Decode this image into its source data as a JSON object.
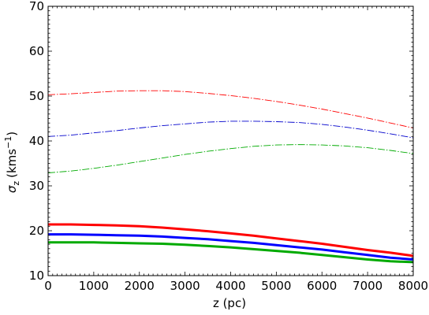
{
  "chart_data": {
    "type": "line",
    "xlabel": "z (pc)",
    "ylabel_symbol": "σ",
    "ylabel_sub": "z",
    "ylabel_units": "(kms",
    "ylabel_exp": "−1",
    "ylabel_close": ")",
    "xlim": [
      0,
      8000
    ],
    "ylim": [
      10,
      70
    ],
    "xticks": [
      0,
      1000,
      2000,
      3000,
      4000,
      5000,
      6000,
      7000,
      8000
    ],
    "yticks": [
      10,
      20,
      30,
      40,
      50,
      60,
      70
    ],
    "x": [
      0,
      500,
      1000,
      1500,
      2000,
      2500,
      3000,
      3500,
      4000,
      4500,
      5000,
      5500,
      6000,
      6500,
      7000,
      7500,
      8000
    ],
    "grid": false,
    "legend": "none",
    "series": [
      {
        "color": "#ff0000",
        "style": "dashdot",
        "values": [
          50.3,
          50.5,
          50.8,
          51.1,
          51.2,
          51.2,
          51.0,
          50.6,
          50.1,
          49.5,
          48.8,
          48.0,
          47.1,
          46.1,
          45.1,
          44.0,
          42.9
        ]
      },
      {
        "color": "#0000cc",
        "style": "dashdot",
        "values": [
          41.0,
          41.3,
          41.8,
          42.3,
          42.9,
          43.4,
          43.8,
          44.2,
          44.4,
          44.4,
          44.3,
          44.1,
          43.7,
          43.1,
          42.4,
          41.6,
          40.7
        ]
      },
      {
        "color": "#00aa00",
        "style": "dashdot",
        "values": [
          32.9,
          33.3,
          33.9,
          34.6,
          35.4,
          36.2,
          37.0,
          37.7,
          38.3,
          38.8,
          39.1,
          39.2,
          39.1,
          38.9,
          38.5,
          37.9,
          37.2
        ]
      },
      {
        "color": "#ff0000",
        "style": "solid",
        "values": [
          21.4,
          21.4,
          21.3,
          21.2,
          21.0,
          20.7,
          20.3,
          19.9,
          19.4,
          18.9,
          18.3,
          17.7,
          17.1,
          16.4,
          15.7,
          15.1,
          14.4
        ]
      },
      {
        "color": "#0000ff",
        "style": "solid",
        "values": [
          19.2,
          19.2,
          19.1,
          19.0,
          18.9,
          18.7,
          18.4,
          18.1,
          17.7,
          17.3,
          16.8,
          16.3,
          15.8,
          15.2,
          14.6,
          14.0,
          13.6
        ]
      },
      {
        "color": "#00aa00",
        "style": "solid",
        "values": [
          17.4,
          17.4,
          17.4,
          17.3,
          17.2,
          17.1,
          16.9,
          16.6,
          16.3,
          15.9,
          15.5,
          15.1,
          14.6,
          14.1,
          13.6,
          13.2,
          13.0
        ]
      }
    ]
  }
}
